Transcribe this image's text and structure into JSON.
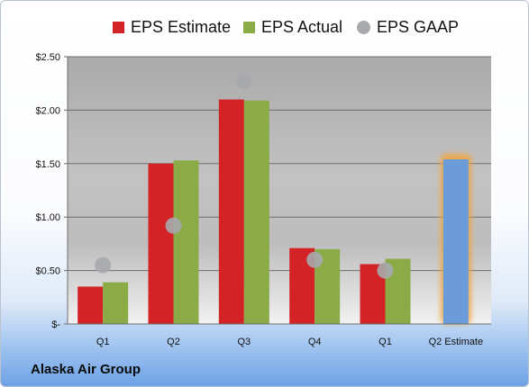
{
  "company": "Alaska Air Group",
  "colors": {
    "estimate": "#d42326",
    "actual": "#8bab47",
    "gaap": "#a7a9ad",
    "next_estimate": "#6b9bd8",
    "next_estimate_glow": "#f3a53a"
  },
  "legend": [
    {
      "key": "estimate",
      "label": "EPS Estimate",
      "shape": "square"
    },
    {
      "key": "actual",
      "label": "EPS Actual",
      "shape": "square"
    },
    {
      "key": "gaap",
      "label": "EPS GAAP",
      "shape": "circle"
    }
  ],
  "chart_data": {
    "type": "bar",
    "categories": [
      "Q1",
      "Q2",
      "Q3",
      "Q4",
      "Q1",
      "Q2 Estimate"
    ],
    "series": [
      {
        "name": "EPS Estimate",
        "values": [
          0.35,
          1.5,
          2.1,
          0.71,
          0.56,
          null
        ]
      },
      {
        "name": "EPS Actual",
        "values": [
          0.39,
          1.53,
          2.09,
          0.7,
          0.61,
          null
        ]
      },
      {
        "name": "EPS GAAP",
        "type": "scatter",
        "values": [
          0.55,
          0.92,
          2.27,
          0.6,
          0.5,
          null
        ]
      },
      {
        "name": "Q2 Estimate",
        "values": [
          null,
          null,
          null,
          null,
          null,
          1.54
        ]
      }
    ],
    "ylim": [
      0,
      2.5
    ],
    "yticks": [
      0,
      0.5,
      1.0,
      1.5,
      2.0,
      2.5
    ],
    "ytick_labels": [
      "$-",
      "$0.50",
      "$1.00",
      "$1.50",
      "$2.00",
      "$2.50"
    ],
    "grid": true,
    "legend_position": "top",
    "xlabel": "",
    "ylabel": ""
  }
}
